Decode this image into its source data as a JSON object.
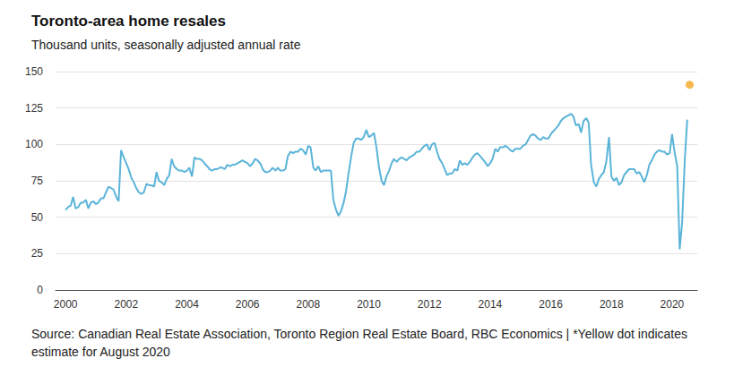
{
  "chart_data": {
    "type": "line",
    "title": "Toronto-area home resales",
    "subtitle": "Thousand units, seasonally adjusted annual rate",
    "annotations": [
      "Source: Canadian Real Estate Association, Toronto Region Real Estate Board, RBC Economics | *Yellow dot indicates estimate for August 2020"
    ],
    "xlim": [
      1999.67,
      2020.83
    ],
    "xticks": [
      2000,
      2002,
      2004,
      2006,
      2008,
      2010,
      2012,
      2014,
      2016,
      2018,
      2020
    ],
    "ylim": [
      0,
      150
    ],
    "yticks": [
      0,
      25,
      50,
      75,
      100,
      125,
      150
    ],
    "grid": true,
    "series": [
      {
        "type": "line",
        "color": "#5bb4d8",
        "line_style": "solid",
        "x": [
          2000,
          2000.08,
          2000.17,
          2000.25,
          2000.33,
          2000.42,
          2000.5,
          2000.58,
          2000.67,
          2000.75,
          2000.83,
          2000.92,
          2001,
          2001.08,
          2001.17,
          2001.25,
          2001.33,
          2001.42,
          2001.5,
          2001.58,
          2001.67,
          2001.75,
          2001.83,
          2001.92,
          2002,
          2002.08,
          2002.17,
          2002.25,
          2002.33,
          2002.42,
          2002.5,
          2002.58,
          2002.67,
          2002.75,
          2002.83,
          2002.92,
          2003,
          2003.08,
          2003.17,
          2003.25,
          2003.33,
          2003.42,
          2003.5,
          2003.58,
          2003.67,
          2003.75,
          2003.83,
          2003.92,
          2004,
          2004.08,
          2004.17,
          2004.25,
          2004.33,
          2004.42,
          2004.5,
          2004.58,
          2004.67,
          2004.75,
          2004.83,
          2004.92,
          2005,
          2005.08,
          2005.17,
          2005.25,
          2005.33,
          2005.42,
          2005.5,
          2005.58,
          2005.67,
          2005.75,
          2005.83,
          2005.92,
          2006,
          2006.08,
          2006.17,
          2006.25,
          2006.33,
          2006.42,
          2006.5,
          2006.58,
          2006.67,
          2006.75,
          2006.83,
          2006.92,
          2007,
          2007.08,
          2007.17,
          2007.25,
          2007.33,
          2007.42,
          2007.5,
          2007.58,
          2007.67,
          2007.75,
          2007.83,
          2007.92,
          2008,
          2008.08,
          2008.17,
          2008.25,
          2008.33,
          2008.42,
          2008.5,
          2008.58,
          2008.67,
          2008.75,
          2008.83,
          2008.92,
          2009,
          2009.08,
          2009.17,
          2009.25,
          2009.33,
          2009.42,
          2009.5,
          2009.58,
          2009.67,
          2009.75,
          2009.83,
          2009.92,
          2010,
          2010.08,
          2010.17,
          2010.25,
          2010.33,
          2010.42,
          2010.5,
          2010.58,
          2010.67,
          2010.75,
          2010.83,
          2010.92,
          2011,
          2011.08,
          2011.17,
          2011.25,
          2011.33,
          2011.42,
          2011.5,
          2011.58,
          2011.67,
          2011.75,
          2011.83,
          2011.92,
          2012,
          2012.08,
          2012.17,
          2012.25,
          2012.33,
          2012.42,
          2012.5,
          2012.58,
          2012.67,
          2012.75,
          2012.83,
          2012.92,
          2013,
          2013.08,
          2013.17,
          2013.25,
          2013.33,
          2013.42,
          2013.5,
          2013.58,
          2013.67,
          2013.75,
          2013.83,
          2013.92,
          2014,
          2014.08,
          2014.17,
          2014.25,
          2014.33,
          2014.42,
          2014.5,
          2014.58,
          2014.67,
          2014.75,
          2014.83,
          2014.92,
          2015,
          2015.08,
          2015.17,
          2015.25,
          2015.33,
          2015.42,
          2015.5,
          2015.58,
          2015.67,
          2015.75,
          2015.83,
          2015.92,
          2016,
          2016.08,
          2016.17,
          2016.25,
          2016.33,
          2016.42,
          2016.5,
          2016.58,
          2016.67,
          2016.75,
          2016.83,
          2016.92,
          2017,
          2017.08,
          2017.17,
          2017.25,
          2017.33,
          2017.42,
          2017.5,
          2017.58,
          2017.67,
          2017.75,
          2017.83,
          2017.92,
          2018,
          2018.08,
          2018.17,
          2018.25,
          2018.33,
          2018.42,
          2018.5,
          2018.58,
          2018.67,
          2018.75,
          2018.83,
          2018.92,
          2019,
          2019.08,
          2019.17,
          2019.25,
          2019.33,
          2019.42,
          2019.5,
          2019.58,
          2019.67,
          2019.75,
          2019.83,
          2019.92,
          2020,
          2020.08,
          2020.17,
          2020.25,
          2020.33,
          2020.42,
          2020.5
        ],
        "values": [
          55,
          57,
          58,
          64,
          56,
          57,
          60,
          60,
          62,
          56,
          60,
          61,
          59,
          60,
          63,
          63,
          67,
          71,
          70,
          69,
          64,
          61,
          96,
          91,
          87,
          83,
          77,
          74,
          70,
          67,
          66,
          67,
          73,
          72,
          72,
          71,
          81,
          75,
          74,
          72,
          76,
          79,
          90,
          85,
          83,
          82,
          82,
          81,
          82,
          84,
          78,
          91,
          90,
          90,
          89,
          87,
          85,
          83,
          82,
          83,
          83,
          84,
          84,
          83,
          86,
          85,
          86,
          86,
          87,
          88,
          89,
          88,
          87,
          85,
          87,
          90,
          89,
          87,
          83,
          81,
          81,
          82,
          84,
          82,
          84,
          82,
          82,
          83,
          92,
          95,
          94,
          95,
          95,
          97,
          96,
          93,
          99,
          98,
          84,
          82,
          85,
          81,
          82,
          82,
          82,
          82,
          62,
          55,
          51,
          54,
          60,
          68,
          80,
          92,
          101,
          104,
          104,
          103,
          105,
          110,
          105,
          106,
          108,
          98,
          85,
          75,
          72,
          78,
          82,
          87,
          90,
          88,
          90,
          91,
          90,
          89,
          91,
          92,
          93,
          95,
          95,
          97,
          99,
          100,
          96,
          100,
          101,
          95,
          90,
          87,
          83,
          79,
          80,
          80,
          83,
          82,
          89,
          86,
          87,
          86,
          88,
          91,
          93,
          94,
          92,
          90,
          88,
          85,
          87,
          90,
          97,
          95,
          98,
          98,
          99,
          98,
          96,
          95,
          97,
          97,
          97,
          99,
          100,
          103,
          106,
          107,
          106,
          104,
          103,
          105,
          104,
          104,
          107,
          109,
          111,
          113,
          116,
          118,
          119,
          120,
          121,
          119,
          113,
          114,
          108,
          116,
          118,
          115,
          86,
          74,
          71,
          76,
          79,
          81,
          88,
          105,
          78,
          75,
          77,
          72,
          74,
          79,
          81,
          83,
          83,
          83,
          80,
          81,
          78,
          74,
          79,
          86,
          89,
          93,
          95,
          96,
          95,
          95,
          93,
          94,
          107,
          95,
          85,
          28,
          46,
          90,
          117
        ]
      },
      {
        "type": "scatter",
        "color": "#f5a623",
        "marker": "circle",
        "x": [
          2020.58
        ],
        "values": [
          141
        ]
      }
    ]
  }
}
